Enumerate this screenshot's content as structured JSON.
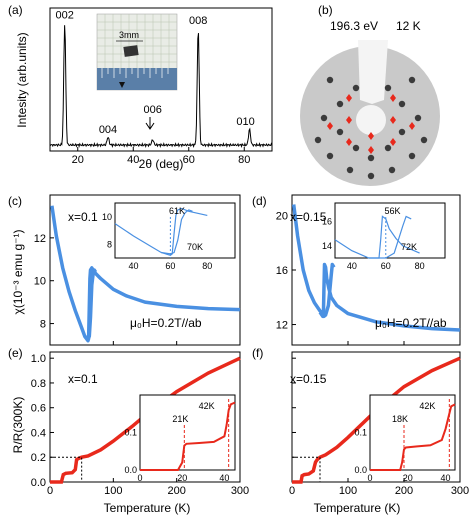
{
  "panels": {
    "a": {
      "label": "(a)"
    },
    "b": {
      "label": "(b)",
      "caption_energy": "196.3 eV",
      "caption_temp": "12 K"
    },
    "c": {
      "label": "(c)",
      "x_label": "x=0.1",
      "field": "μ₀H=0.2T//ab"
    },
    "d": {
      "label": "(d)",
      "x_label": "x=0.15",
      "field": "μ₀H=0.2T//ab"
    },
    "e": {
      "label": "(e)",
      "x_label": "x=0.1"
    },
    "f": {
      "label": "(f)",
      "x_label": "x=0.15"
    }
  },
  "inset_a": {
    "scale": "3mm"
  },
  "chart_data": [
    {
      "id": "a",
      "type": "line",
      "xlabel": "2θ (deg)",
      "ylabel": "Intesity (arb.units)",
      "xlim": [
        10,
        90
      ],
      "xticks": [
        20,
        40,
        60,
        80
      ],
      "peaks": [
        {
          "x": 15.3,
          "label": "002",
          "h": 0.92
        },
        {
          "x": 30.9,
          "label": "004",
          "h": 0.06
        },
        {
          "x": 47.0,
          "label": "006",
          "h": 0.04
        },
        {
          "x": 63.4,
          "label": "008",
          "h": 0.88
        },
        {
          "x": 81.9,
          "label": "010",
          "h": 0.12
        }
      ]
    },
    {
      "id": "c",
      "type": "line",
      "ylabel": "χ(10⁻³ emu g⁻¹)",
      "xlim": [
        0,
        300
      ],
      "ylim": [
        7,
        14
      ],
      "yticks": [
        8,
        10,
        12
      ],
      "series": [
        {
          "x": [
            3,
            10,
            20,
            30,
            40,
            50,
            55,
            60,
            61,
            62,
            63,
            64,
            66,
            70,
            80,
            100,
            120,
            150,
            200,
            250,
            300
          ],
          "y": [
            13.5,
            12.1,
            10.6,
            9.5,
            8.6,
            7.8,
            7.4,
            7.2,
            7.3,
            8.8,
            10.1,
            10.5,
            10.6,
            10.4,
            10.1,
            9.6,
            9.3,
            9.0,
            8.8,
            8.7,
            8.65
          ]
        },
        {
          "x": [
            55,
            60,
            62,
            64,
            66,
            68,
            70,
            72
          ],
          "y": [
            7.4,
            7.3,
            7.4,
            8.3,
            9.8,
            10.3,
            10.5,
            10.4
          ]
        }
      ],
      "inset": {
        "xlim": [
          30,
          95
        ],
        "ylim": [
          7,
          11
        ],
        "xticks": [
          40,
          60,
          80
        ],
        "yticks": [
          8,
          10
        ],
        "annot1": "61K",
        "annot2": "70K"
      }
    },
    {
      "id": "d",
      "type": "line",
      "xlim": [
        0,
        300
      ],
      "ylim": [
        10.5,
        21.5
      ],
      "yticks": [
        12,
        16,
        20
      ],
      "series": [
        {
          "x": [
            3,
            10,
            20,
            30,
            40,
            50,
            55,
            56,
            57,
            58,
            60,
            62,
            66,
            70,
            80,
            100,
            150,
            200,
            250,
            300
          ],
          "y": [
            20.8,
            18.5,
            16.0,
            14.5,
            13.6,
            13.0,
            12.8,
            12.7,
            14.5,
            16.4,
            16.2,
            15.4,
            14.6,
            14.0,
            13.4,
            12.8,
            12.2,
            11.9,
            11.7,
            11.6
          ]
        },
        {
          "x": [
            50,
            55,
            57,
            60,
            65,
            70,
            72,
            75
          ],
          "y": [
            12.9,
            12.6,
            12.6,
            12.7,
            13.4,
            15.6,
            16.4,
            16.2
          ]
        }
      ],
      "inset": {
        "xlim": [
          30,
          95
        ],
        "ylim": [
          13,
          17.5
        ],
        "xticks": [
          40,
          60,
          80
        ],
        "yticks": [
          14,
          16
        ],
        "annot1": "56K",
        "annot2": "72K"
      }
    },
    {
      "id": "e",
      "type": "line",
      "ylabel": "R/R(300K)",
      "xlabel": "Temperature (K)",
      "xlim": [
        0,
        300
      ],
      "ylim": [
        0,
        1.05
      ],
      "xticks": [
        0,
        100,
        200,
        300
      ],
      "yticks": [
        0.0,
        0.2,
        0.4,
        0.6,
        0.8,
        1.0
      ],
      "series": [
        {
          "x": [
            0,
            18,
            21,
            25,
            35,
            40,
            42,
            45,
            50,
            60,
            80,
            100,
            130,
            160,
            200,
            250,
            300
          ],
          "y": [
            0.0,
            0.0,
            0.06,
            0.07,
            0.075,
            0.1,
            0.18,
            0.19,
            0.2,
            0.21,
            0.26,
            0.33,
            0.45,
            0.58,
            0.73,
            0.88,
            1.0
          ]
        }
      ],
      "guide": {
        "x": 50,
        "y": 0.2
      },
      "inset": {
        "xlim": [
          0,
          45
        ],
        "ylim": [
          0,
          0.2
        ],
        "xticks": [
          0,
          20,
          40
        ],
        "yticks": [
          0.0,
          0.1
        ],
        "x": [
          0,
          18,
          20,
          21,
          22,
          28,
          35,
          40,
          41,
          42,
          43,
          45
        ],
        "y": [
          0.0,
          0.0,
          0.02,
          0.065,
          0.07,
          0.072,
          0.075,
          0.09,
          0.12,
          0.16,
          0.175,
          0.18
        ],
        "annot1": "21K",
        "annot2": "42K",
        "mark1": 21,
        "mark2": 42
      }
    },
    {
      "id": "f",
      "type": "line",
      "xlabel": "Temperature (K)",
      "xlim": [
        0,
        300
      ],
      "ylim": [
        0,
        1.05
      ],
      "xticks": [
        0,
        100,
        200,
        300
      ],
      "series": [
        {
          "x": [
            0,
            16,
            18,
            22,
            30,
            38,
            42,
            45,
            50,
            60,
            80,
            100,
            130,
            160,
            200,
            250,
            300
          ],
          "y": [
            0.0,
            0.0,
            0.05,
            0.06,
            0.065,
            0.09,
            0.16,
            0.18,
            0.2,
            0.22,
            0.28,
            0.36,
            0.49,
            0.62,
            0.77,
            0.9,
            1.0
          ]
        }
      ],
      "guide": {
        "x": 50,
        "y": 0.2
      },
      "inset": {
        "xlim": [
          0,
          45
        ],
        "ylim": [
          0,
          0.2
        ],
        "xticks": [
          0,
          20,
          40
        ],
        "yticks": [
          0.0,
          0.1
        ],
        "x": [
          0,
          16,
          17,
          18,
          19,
          25,
          32,
          38,
          40,
          42,
          43,
          45
        ],
        "y": [
          0.0,
          0.0,
          0.02,
          0.055,
          0.06,
          0.063,
          0.066,
          0.08,
          0.11,
          0.15,
          0.17,
          0.175
        ],
        "annot1": "18K",
        "annot2": "42K",
        "mark1": 18,
        "mark2": 42
      }
    }
  ],
  "colors": {
    "blue": "#4a90e2",
    "red": "#e8291c",
    "leed_bg": "#c9c9c9"
  }
}
